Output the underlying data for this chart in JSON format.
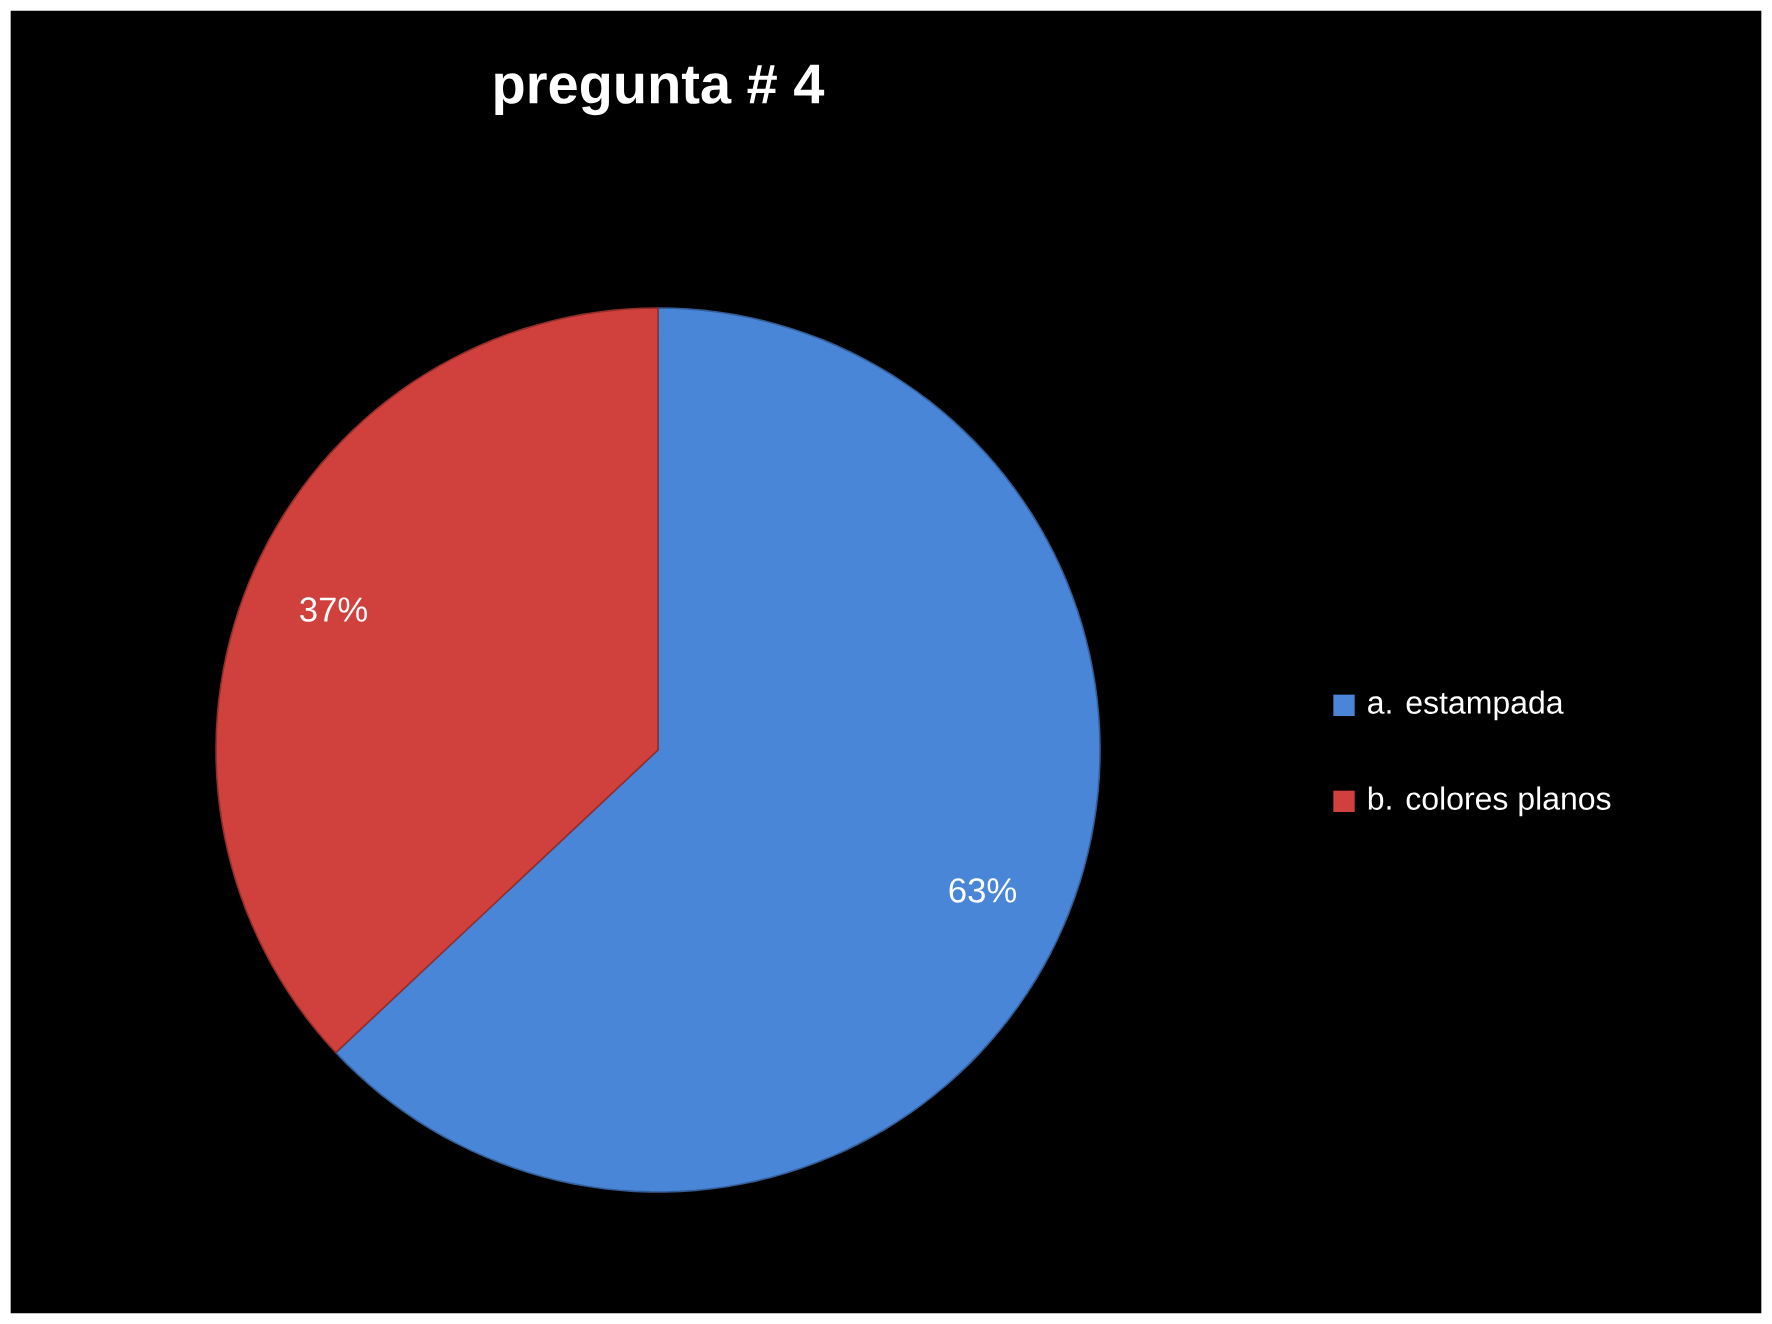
{
  "chart_data": {
    "type": "pie",
    "title": "pregunta # 4",
    "categories": [
      "a. estampada",
      "b. colores planos"
    ],
    "values": [
      63,
      37
    ],
    "colors": [
      "#4a86d8",
      "#d0413e"
    ],
    "value_labels": [
      "63%",
      "37%"
    ],
    "legend": "right"
  }
}
